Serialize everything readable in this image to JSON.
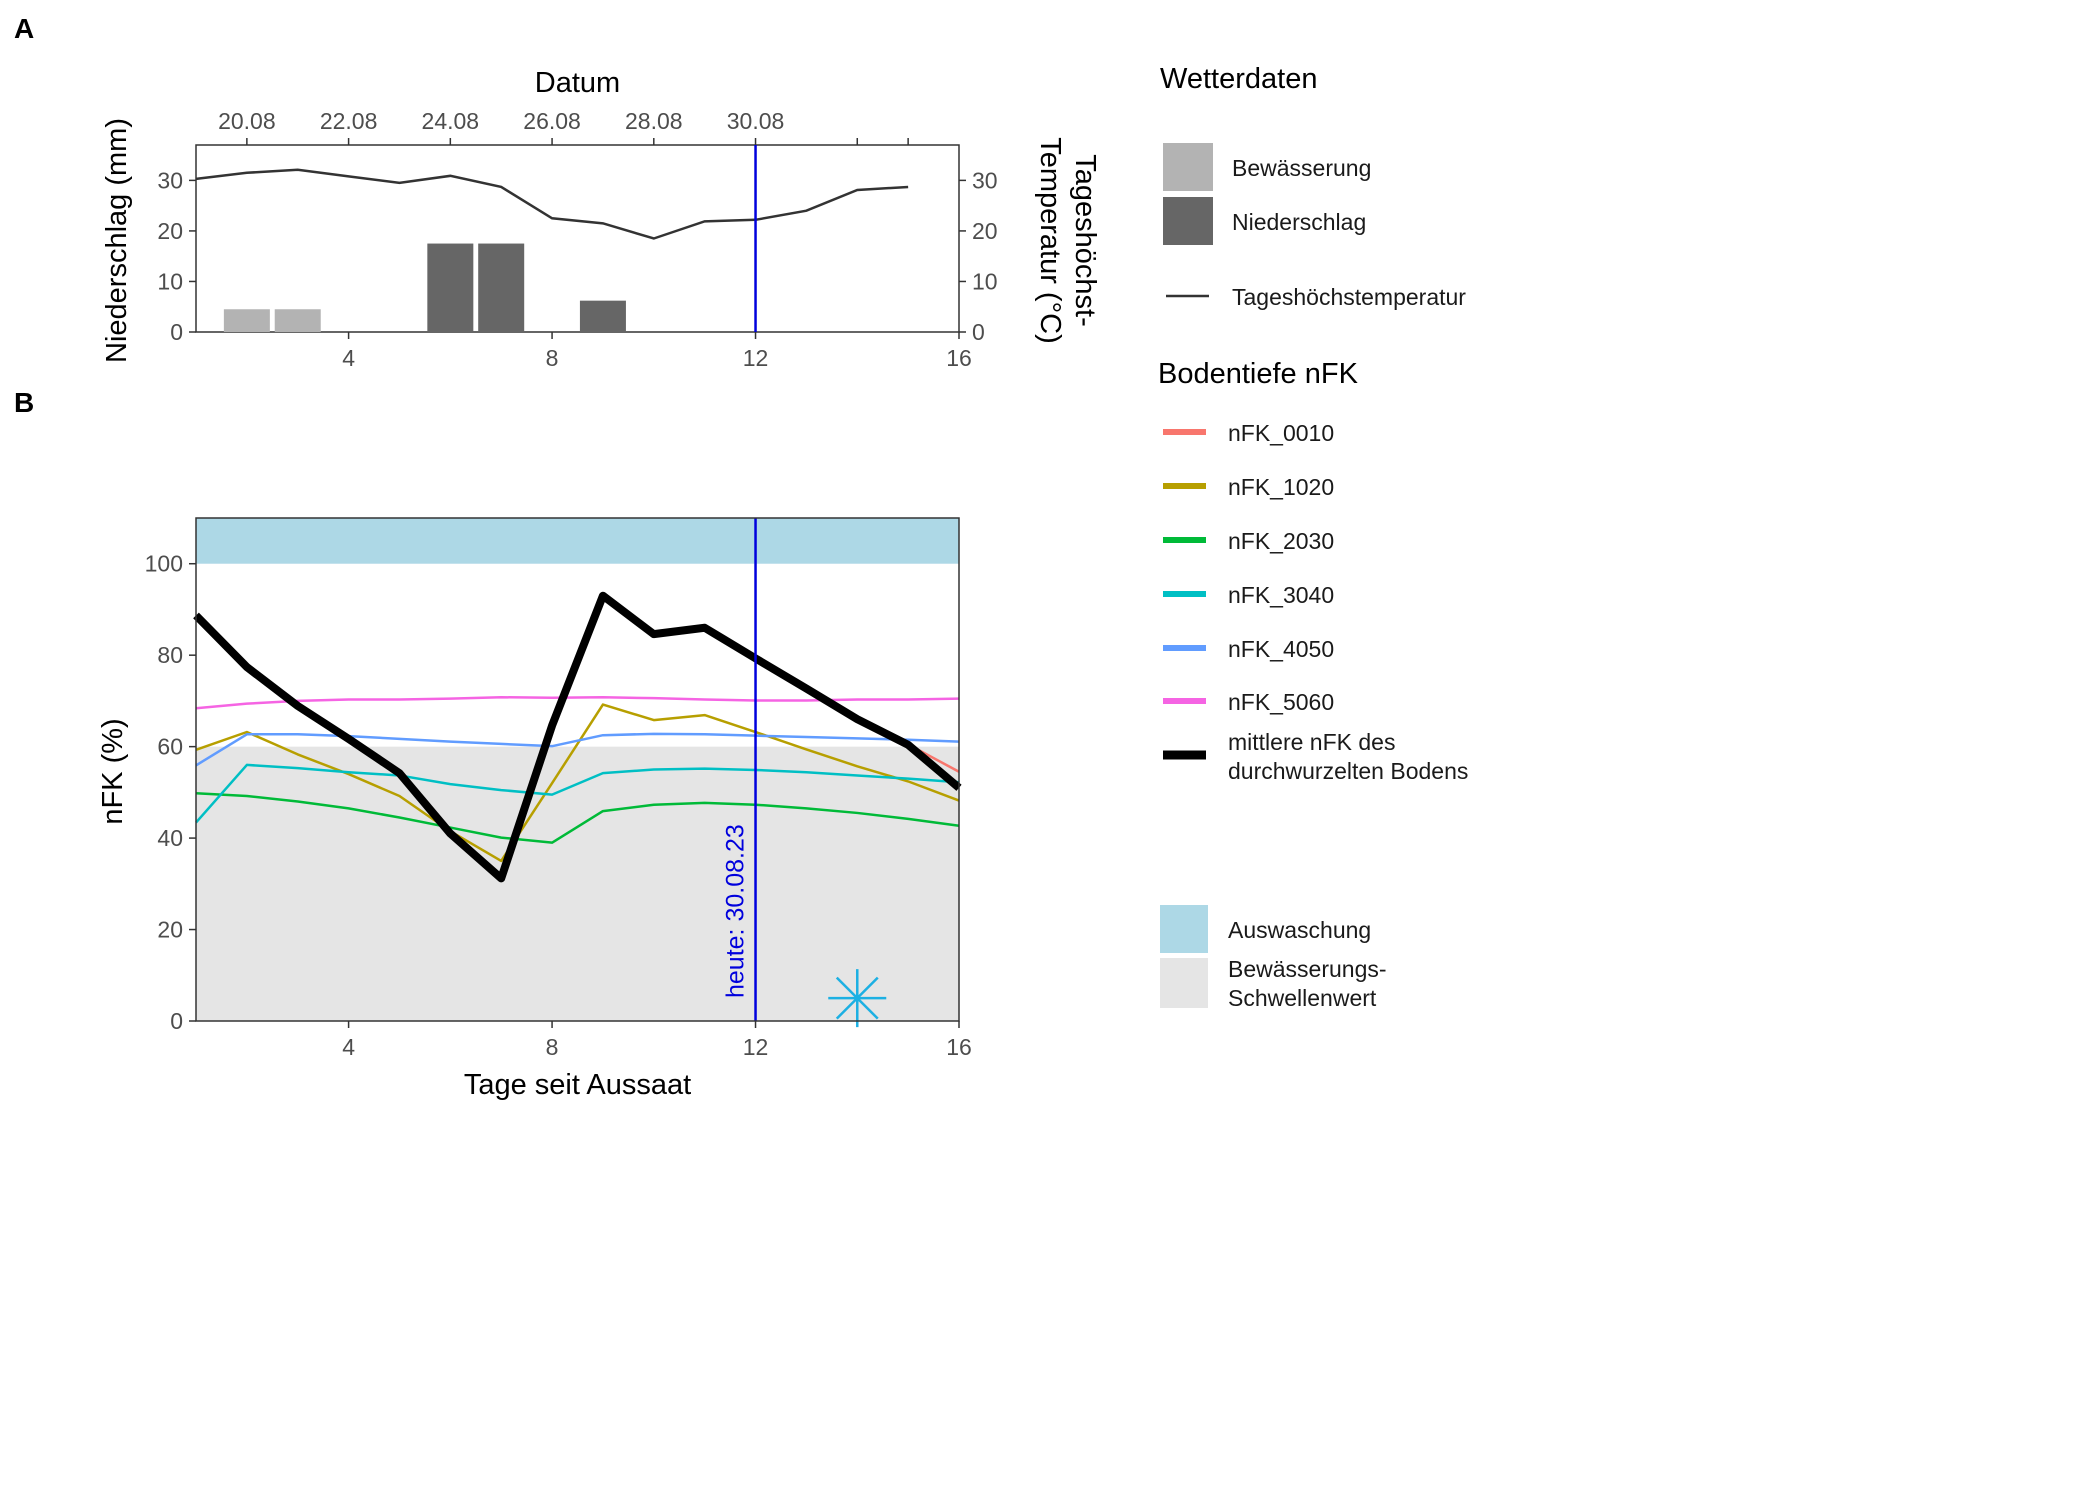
{
  "panel_labels": {
    "a": "A",
    "b": "B"
  },
  "colors": {
    "bewaesserung": "#b3b3b3",
    "niederschlag": "#666666",
    "temperature": "#333333",
    "today_line": "#0000dd",
    "auswaschung": "#add8e6",
    "schwelle": "#e5e5e5",
    "mean_nfk": "#000000",
    "star": "#1cb0e3"
  },
  "chart_data": [
    {
      "type": "bar",
      "title": "",
      "xlabel": "",
      "ylabel": "Niederschlag (mm)",
      "ylabel_right": [
        "Tageshöchst-",
        "Temperatur (°C)"
      ],
      "top_axis": {
        "title": "Datum",
        "tick_labels": [
          "20.08",
          "22.08",
          "24.08",
          "26.08",
          "28.08",
          "30.08",
          "",
          ""
        ],
        "tick_days": [
          2,
          4,
          6,
          8,
          10,
          12,
          14,
          15
        ]
      },
      "xlim": [
        1,
        16
      ],
      "ylim": [
        0,
        37
      ],
      "x_ticks": [
        4,
        8,
        12,
        16
      ],
      "y_ticks": [
        0,
        10,
        20,
        30
      ],
      "grid": false,
      "today_day": 12,
      "series": [
        {
          "name": "Bewässerung",
          "type": "bar",
          "x": [
            2,
            3
          ],
          "values": [
            4.5,
            4.5
          ]
        },
        {
          "name": "Niederschlag",
          "type": "bar",
          "x": [
            6,
            7,
            9
          ],
          "values": [
            17.5,
            17.5,
            6.2
          ]
        },
        {
          "name": "Tageshöchstemperatur",
          "type": "line",
          "x": [
            1,
            2,
            3,
            4,
            5,
            6,
            7,
            8,
            9,
            10,
            11,
            12,
            13,
            14,
            15
          ],
          "values": [
            30.3,
            31.5,
            32.1,
            30.8,
            29.5,
            30.9,
            28.7,
            22.5,
            21.5,
            18.5,
            21.9,
            22.2,
            24.0,
            28.1,
            28.7
          ]
        }
      ],
      "legend": {
        "title": "Wetterdaten",
        "placement": "right",
        "items": [
          "Bewässerung",
          "Niederschlag",
          "Tageshöchstemperatur"
        ]
      }
    },
    {
      "type": "line",
      "title": "",
      "xlabel": "Tage seit Aussaat",
      "ylabel": "nFK (%)",
      "xlim": [
        1,
        16
      ],
      "ylim": [
        0,
        110
      ],
      "x_ticks": [
        4,
        8,
        12,
        16
      ],
      "y_ticks": [
        0,
        20,
        40,
        60,
        80,
        100
      ],
      "grid": false,
      "auswaschung_range": [
        100,
        110
      ],
      "schwellenwert_range": [
        0,
        60
      ],
      "today_day": 12,
      "today_label": "heute: 30.08.23",
      "star_marker": {
        "x": 14,
        "y": 5
      },
      "x": [
        1,
        2,
        3,
        4,
        5,
        6,
        7,
        8,
        9,
        10,
        11,
        12,
        13,
        14,
        15,
        16
      ],
      "series": [
        {
          "name": "nFK_0010",
          "color": "#f8766d",
          "values": [
            null,
            null,
            null,
            null,
            null,
            null,
            null,
            null,
            null,
            null,
            null,
            null,
            null,
            null,
            60.5,
            54.5
          ]
        },
        {
          "name": "nFK_1020",
          "color": "#b79f00",
          "values": [
            59.3,
            63.2,
            58.3,
            54.0,
            49.2,
            41.5,
            35.0,
            52.0,
            69.2,
            65.8,
            66.9,
            63.2,
            59.4,
            55.7,
            52.4,
            48.2
          ]
        },
        {
          "name": "nFK_2030",
          "color": "#00ba38",
          "values": [
            49.8,
            49.2,
            48.0,
            46.5,
            44.5,
            42.3,
            40.1,
            39.0,
            45.9,
            47.3,
            47.7,
            47.3,
            46.5,
            45.5,
            44.2,
            42.7
          ]
        },
        {
          "name": "nFK_3040",
          "color": "#00bfc4",
          "values": [
            43.4,
            56.0,
            55.3,
            54.4,
            53.7,
            51.8,
            50.5,
            49.5,
            54.2,
            55.0,
            55.2,
            54.9,
            54.4,
            53.7,
            53.0,
            52.2
          ]
        },
        {
          "name": "nFK_4050",
          "color": "#619cff",
          "values": [
            55.9,
            62.7,
            62.7,
            62.3,
            61.7,
            61.1,
            60.6,
            60.1,
            62.5,
            62.8,
            62.7,
            62.4,
            62.1,
            61.8,
            61.5,
            61.1
          ]
        },
        {
          "name": "nFK_5060",
          "color": "#f564e3",
          "values": [
            68.4,
            69.4,
            70.0,
            70.3,
            70.3,
            70.5,
            70.8,
            70.7,
            70.8,
            70.6,
            70.3,
            70.1,
            70.1,
            70.3,
            70.3,
            70.5
          ]
        },
        {
          "name": "mittlere nFK des durchwurzelten Bodens",
          "color": "#000000",
          "values": [
            88.7,
            77.4,
            68.9,
            61.7,
            54.2,
            41.0,
            31.2,
            64.6,
            93.0,
            84.6,
            86.0,
            79.3,
            72.7,
            66.0,
            60.4,
            51.0
          ]
        }
      ],
      "legend": {
        "title": "Bodentiefe nFK",
        "placement": "right",
        "items": [
          "nFK_0010",
          "nFK_1020",
          "nFK_2030",
          "nFK_3040",
          "nFK_4050",
          "nFK_5060",
          [
            "mittlere nFK des",
            "durchwurzelten Bodens"
          ]
        ],
        "fill_items": [
          "Auswaschung",
          [
            "Bewässerungs-",
            "Schwellenwert"
          ]
        ]
      }
    }
  ]
}
